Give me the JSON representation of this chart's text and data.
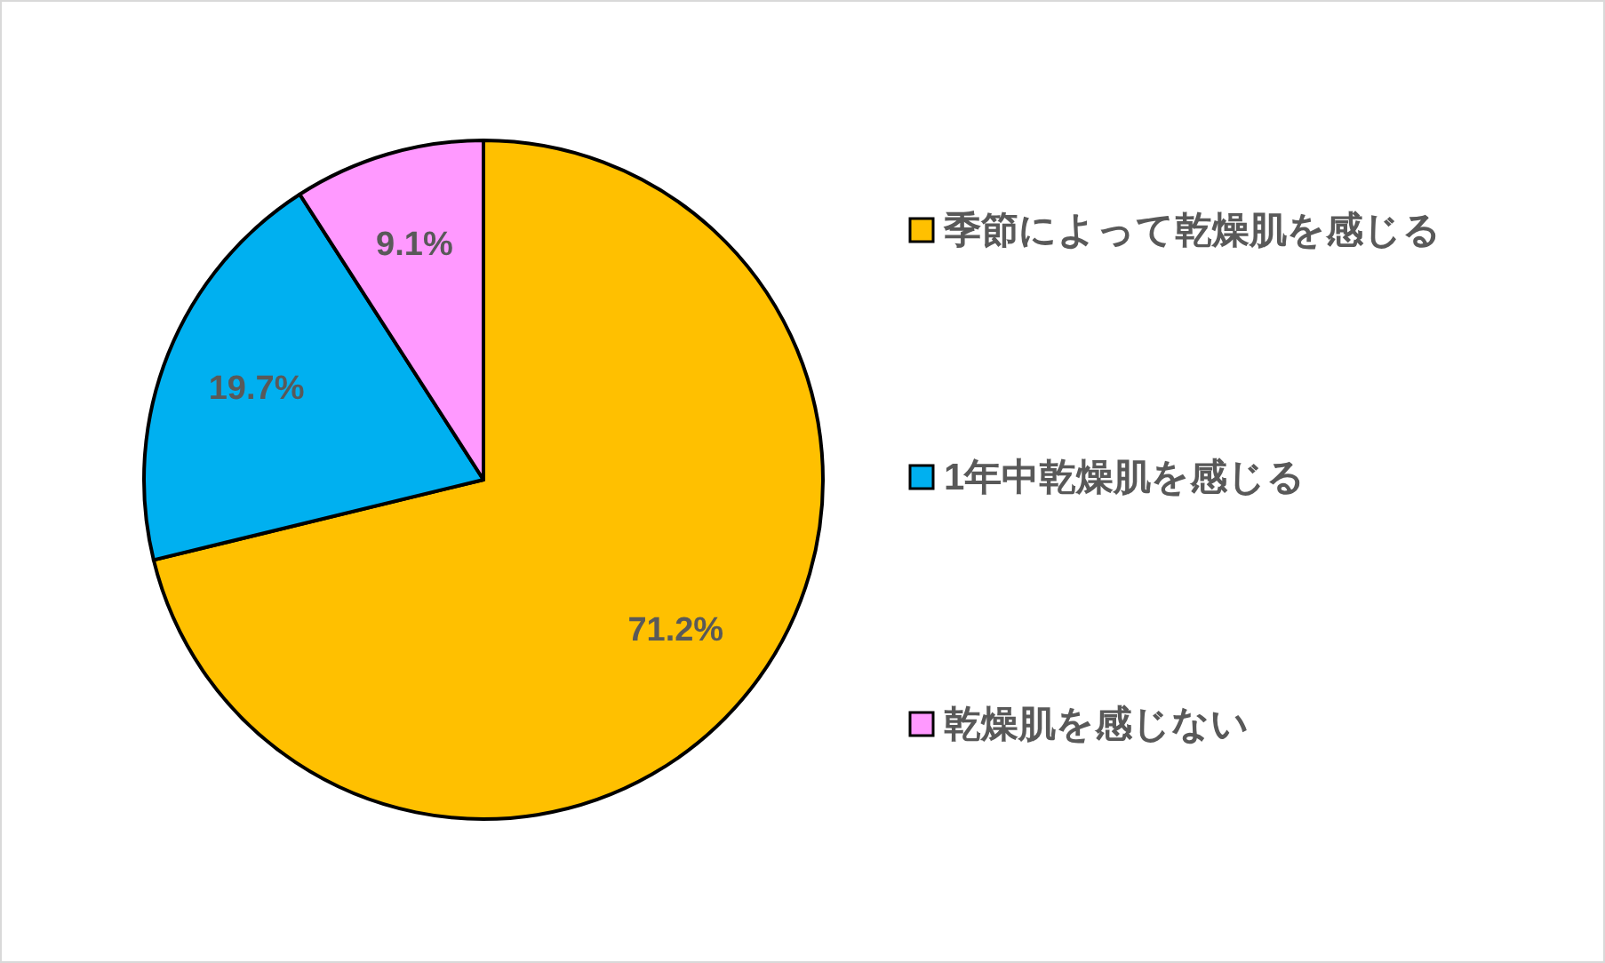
{
  "chart_data": {
    "type": "pie",
    "categories": [
      "季節によって乾燥肌を感じる",
      "1年中乾燥肌を感じる",
      "乾燥肌を感じない"
    ],
    "values": [
      71.2,
      19.7,
      9.1
    ],
    "colors": [
      "#ffc000",
      "#00b0f0",
      "#ff99ff"
    ],
    "value_labels": [
      "71.2%",
      "19.7%",
      "9.1%"
    ],
    "legend": "right"
  }
}
